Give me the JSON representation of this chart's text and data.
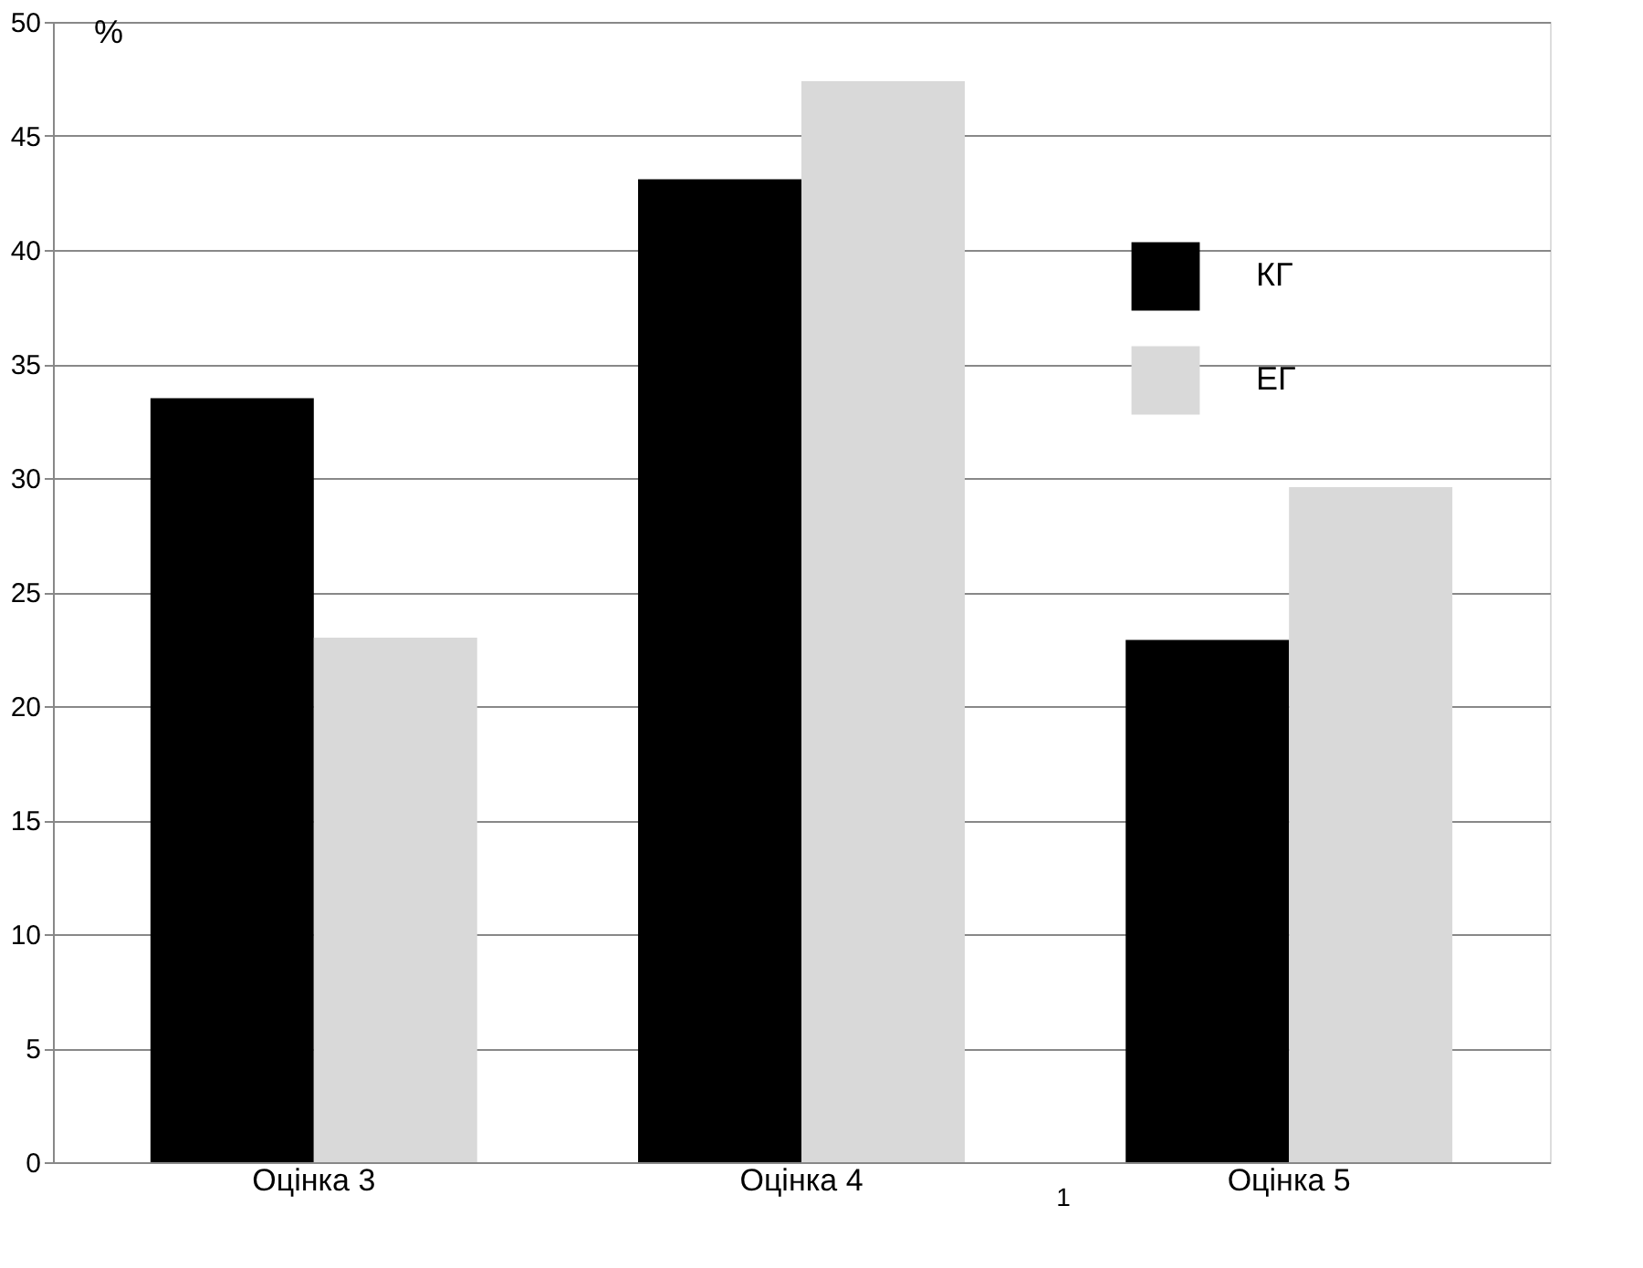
{
  "chart_data": {
    "type": "bar",
    "ylabel": "%",
    "categories": [
      "Оцінка 3",
      "Оцінка 4",
      "Оцінка 5"
    ],
    "series": [
      {
        "name": "КГ",
        "color": "#000000",
        "values": [
          33.5,
          43.1,
          22.9
        ]
      },
      {
        "name": "ЕГ",
        "color": "#d9d9d9",
        "values": [
          23.0,
          47.4,
          29.6
        ]
      }
    ],
    "ylim": [
      0,
      50
    ],
    "yticks": [
      0,
      5,
      10,
      15,
      20,
      25,
      30,
      35,
      40,
      45,
      50
    ],
    "grid": "y",
    "legend": "right",
    "annotations": [
      "1"
    ]
  }
}
